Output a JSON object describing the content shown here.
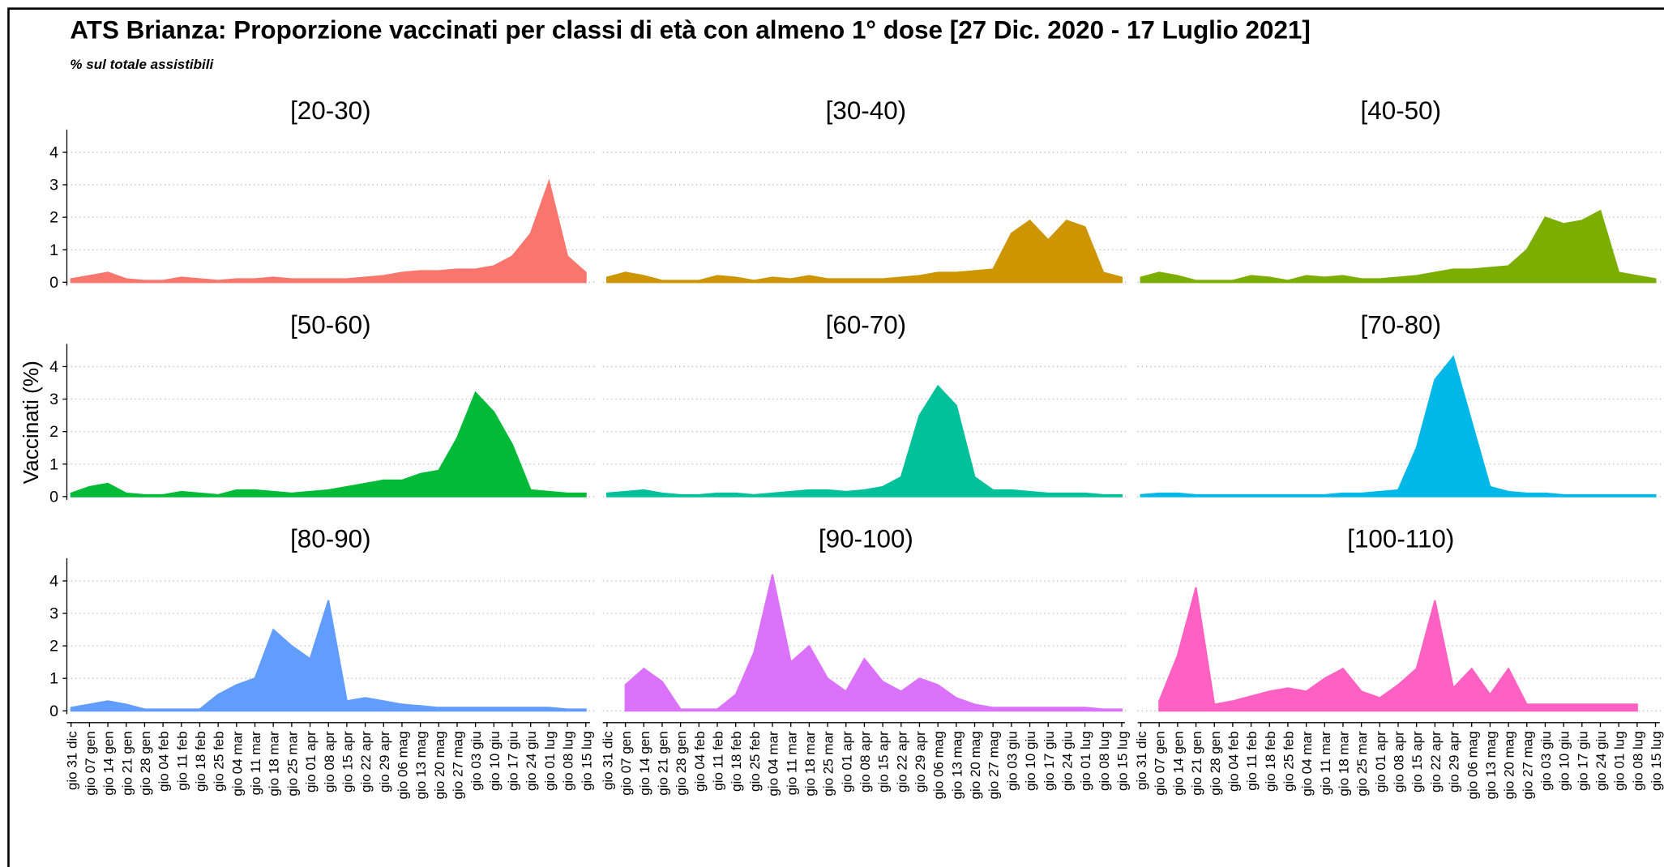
{
  "chart_data": {
    "type": "area",
    "title": "ATS Brianza: Proporzione vaccinati per classi di età con almeno 1° dose [27 Dic. 2020 - 17 Luglio 2021]",
    "subtitle": "% sul totale assistibili",
    "ylabel": "Vaccinati (%)",
    "x": [
      "gio 31 dic",
      "gio 07 gen",
      "gio 14 gen",
      "gio 21 gen",
      "gio 28 gen",
      "gio 04 feb",
      "gio 11 feb",
      "gio 18 feb",
      "gio 25 feb",
      "gio 04 mar",
      "gio 11 mar",
      "gio 18 mar",
      "gio 25 mar",
      "gio 01 apr",
      "gio 08 apr",
      "gio 15 apr",
      "gio 22 apr",
      "gio 29 apr",
      "gio 06 mag",
      "gio 13 mag",
      "gio 20 mag",
      "gio 27 mag",
      "gio 03 giu",
      "gio 10 giu",
      "gio 17 giu",
      "gio 24 giu",
      "gio 01 lug",
      "gio 08 lug",
      "gio 15 lug"
    ],
    "ylim": [
      -0.1,
      4.7
    ],
    "yticks": [
      0,
      1,
      2,
      3,
      4
    ],
    "grid": true,
    "series": [
      {
        "name": "[20-30)",
        "color": "#F8766D",
        "values": [
          0.1,
          0.2,
          0.3,
          0.1,
          0.05,
          0.05,
          0.15,
          0.1,
          0.05,
          0.1,
          0.1,
          0.15,
          0.1,
          0.1,
          0.1,
          0.1,
          0.15,
          0.2,
          0.3,
          0.35,
          0.35,
          0.4,
          0.4,
          0.5,
          0.8,
          1.5,
          3.1,
          0.8,
          0.3
        ]
      },
      {
        "name": "[30-40)",
        "color": "#CD9600",
        "values": [
          0.15,
          0.3,
          0.2,
          0.05,
          0.05,
          0.05,
          0.2,
          0.15,
          0.05,
          0.15,
          0.1,
          0.2,
          0.1,
          0.1,
          0.1,
          0.1,
          0.15,
          0.2,
          0.3,
          0.3,
          0.35,
          0.4,
          1.5,
          1.9,
          1.3,
          1.9,
          1.7,
          0.3,
          0.15
        ]
      },
      {
        "name": "[40-50)",
        "color": "#7CAE00",
        "values": [
          0.15,
          0.3,
          0.2,
          0.05,
          0.05,
          0.05,
          0.2,
          0.15,
          0.05,
          0.2,
          0.15,
          0.2,
          0.1,
          0.1,
          0.15,
          0.2,
          0.3,
          0.4,
          0.4,
          0.45,
          0.5,
          1.0,
          2.0,
          1.8,
          1.9,
          2.2,
          0.3,
          0.2,
          0.1
        ]
      },
      {
        "name": "[50-60)",
        "color": "#00BA38",
        "values": [
          0.1,
          0.3,
          0.4,
          0.1,
          0.05,
          0.05,
          0.15,
          0.1,
          0.05,
          0.2,
          0.2,
          0.15,
          0.1,
          0.15,
          0.2,
          0.3,
          0.4,
          0.5,
          0.5,
          0.7,
          0.8,
          1.8,
          3.2,
          2.6,
          1.6,
          0.2,
          0.15,
          0.1,
          0.1
        ]
      },
      {
        "name": "[60-70)",
        "color": "#00C19A",
        "values": [
          0.1,
          0.15,
          0.2,
          0.1,
          0.05,
          0.05,
          0.1,
          0.1,
          0.05,
          0.1,
          0.15,
          0.2,
          0.2,
          0.15,
          0.2,
          0.3,
          0.6,
          2.5,
          3.4,
          2.8,
          0.6,
          0.2,
          0.2,
          0.15,
          0.1,
          0.1,
          0.1,
          0.05,
          0.05
        ]
      },
      {
        "name": "[70-80)",
        "color": "#00B8E7",
        "values": [
          0.05,
          0.1,
          0.1,
          0.05,
          0.05,
          0.05,
          0.05,
          0.05,
          0.05,
          0.05,
          0.05,
          0.1,
          0.1,
          0.15,
          0.2,
          1.5,
          3.6,
          4.3,
          2.3,
          0.3,
          0.15,
          0.1,
          0.1,
          0.05,
          0.05,
          0.05,
          0.05,
          0.05,
          0.05
        ]
      },
      {
        "name": "[80-90)",
        "color": "#619CFF",
        "values": [
          0.1,
          0.2,
          0.3,
          0.2,
          0.05,
          0.05,
          0.05,
          0.05,
          0.5,
          0.8,
          1.0,
          2.5,
          2.0,
          1.6,
          3.4,
          0.3,
          0.4,
          0.3,
          0.2,
          0.15,
          0.1,
          0.1,
          0.1,
          0.1,
          0.1,
          0.1,
          0.1,
          0.05,
          0.05
        ]
      },
      {
        "name": "[90-100)",
        "color": "#DB72FB",
        "values": [
          null,
          0.8,
          1.3,
          0.9,
          0.05,
          0.05,
          0.05,
          0.5,
          1.8,
          4.2,
          1.5,
          2.0,
          1.0,
          0.6,
          1.6,
          0.9,
          0.6,
          1.0,
          0.8,
          0.4,
          0.2,
          0.1,
          0.1,
          0.1,
          0.1,
          0.1,
          0.1,
          0.05,
          0.05
        ]
      },
      {
        "name": "[100-110)",
        "color": "#FF61C3",
        "values": [
          null,
          0.3,
          1.7,
          3.8,
          0.2,
          0.3,
          0.45,
          0.6,
          0.7,
          0.6,
          1.0,
          1.3,
          0.6,
          0.4,
          0.8,
          1.3,
          3.4,
          0.7,
          1.3,
          0.5,
          1.3,
          0.2,
          0.2,
          0.2,
          0.2,
          0.2,
          0.2,
          0.2,
          null
        ]
      }
    ]
  }
}
